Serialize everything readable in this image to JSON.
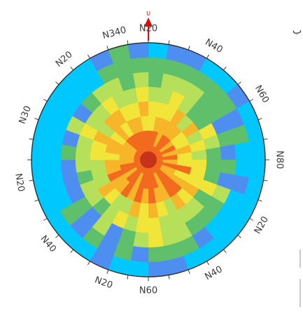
{
  "chart_data": {
    "type": "heatmap",
    "projection": "polar",
    "north_marker": "U",
    "angle_labels": [
      {
        "deg": 0,
        "text": "N20"
      },
      {
        "deg": 30,
        "text": "N40"
      },
      {
        "deg": 60,
        "text": "N60"
      },
      {
        "deg": 90,
        "text": "N80"
      },
      {
        "deg": 120,
        "text": "N20"
      },
      {
        "deg": 150,
        "text": "N40"
      },
      {
        "deg": 180,
        "text": "N60"
      },
      {
        "deg": 200,
        "text": "N20"
      },
      {
        "deg": 230,
        "text": "N40"
      },
      {
        "deg": 260,
        "text": "N20"
      },
      {
        "deg": 290,
        "text": "N30"
      },
      {
        "deg": 320,
        "text": "N20"
      },
      {
        "deg": 345,
        "text": "N340"
      }
    ],
    "colorscale": [
      "#00c8ff",
      "#4d8ef0",
      "#5fbf6a",
      "#b6df5a",
      "#f2e53a",
      "#f7b62a",
      "#f26a1e"
    ],
    "ring_count": 8,
    "sector_count": 36
  },
  "side": {
    "glyph": "ب"
  }
}
